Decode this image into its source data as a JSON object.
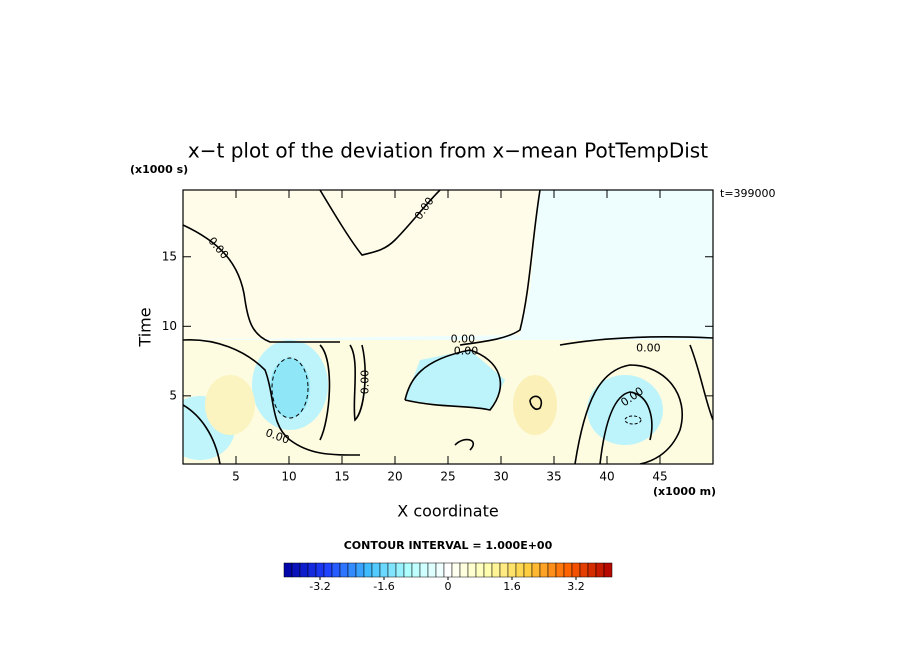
{
  "chart_data": {
    "type": "contour",
    "title": "x−t plot of the deviation from x−mean PotTempDist",
    "x_label": "X coordinate",
    "x_unit": "(x1000 m)",
    "y_label": "Time",
    "y_unit": "(x1000 s)",
    "annotation": "t=399000",
    "xlim": [
      0,
      50
    ],
    "xticks": [
      5,
      10,
      15,
      20,
      25,
      30,
      35,
      40,
      45
    ],
    "ylim": [
      0.1,
      19.8
    ],
    "yticks": [
      5,
      10,
      15
    ],
    "contour_labels": [
      {
        "label": "0.00",
        "x": 22.8,
        "y": 18.45
      },
      {
        "label": "0.00",
        "x": 3.3,
        "y": 15.6
      },
      {
        "label": "0.00",
        "x": 26.4,
        "y": 9.06
      },
      {
        "label": "0.00",
        "x": 26.7,
        "y": 8.2
      },
      {
        "label": "0.00",
        "x": 43.9,
        "y": 8.4
      },
      {
        "label": "0.00",
        "x": 17.2,
        "y": 6.0
      },
      {
        "label": "0.00",
        "x": 42.4,
        "y": 4.9
      },
      {
        "label": "0.00",
        "x": 8.9,
        "y": 2.05
      }
    ],
    "colorbar": {
      "title": "CONTOUR INTERVAL = 1.000E+00",
      "lim": [
        -4.1,
        4.1
      ],
      "ticks": [
        -3.2,
        -1.6,
        0,
        1.6,
        3.2
      ]
    }
  }
}
